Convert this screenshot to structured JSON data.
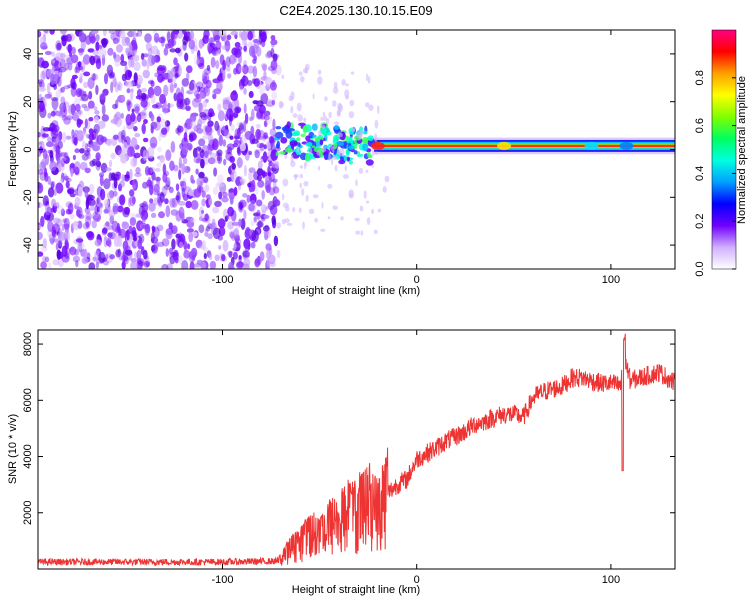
{
  "title": "C2E4.2025.130.10.15.E09",
  "chart_data": [
    {
      "type": "heatmap",
      "xlabel": "Height of straight line (km)",
      "ylabel": "Frequency (Hz)",
      "xlim": [
        -195,
        133
      ],
      "ylim": [
        -50,
        50
      ],
      "x_ticks": [
        -100,
        0,
        100
      ],
      "x_tick_labels": [
        "-100",
        "0",
        "100"
      ],
      "y_ticks": [
        40,
        20,
        0,
        -20,
        -40
      ],
      "y_tick_labels": [
        "40",
        "20",
        "0",
        "-20",
        "-40"
      ],
      "noise_region_x": [
        -195,
        -71
      ],
      "signal_band_center_hz": 1.5,
      "colorbar": {
        "label": "Normalized spectral amplitude",
        "range": [
          0,
          1
        ],
        "ticks": [
          0.0,
          0.2,
          0.4,
          0.6,
          0.8
        ],
        "tick_labels": [
          "0.0",
          "0.2",
          "0.4",
          "0.6",
          "0.8"
        ],
        "colormap": [
          "#ffffff",
          "#d0b0ff",
          "#7000ff",
          "#0000ff",
          "#00a0ff",
          "#00ffe0",
          "#00ff60",
          "#80ff00",
          "#ffff00",
          "#ffa000",
          "#ff0000",
          "#ff0080"
        ]
      }
    },
    {
      "type": "line",
      "xlabel": "Height of straight line (km)",
      "ylabel": "SNR (10 * v/v)",
      "xlim": [
        -195,
        133
      ],
      "ylim": [
        0,
        8500
      ],
      "x_ticks": [
        -100,
        0,
        100
      ],
      "x_tick_labels": [
        "-100",
        "0",
        "100"
      ],
      "y_ticks": [
        2000,
        4000,
        6000,
        8000
      ],
      "y_tick_labels": [
        "2000",
        "4000",
        "6000",
        "8000"
      ],
      "color": "#ee3333",
      "x": [
        -195,
        -150,
        -100,
        -71,
        -65,
        -60,
        -55,
        -50,
        -45,
        -40,
        -35,
        -30,
        -25,
        -20,
        -15,
        -10,
        -5,
        0,
        5,
        10,
        15,
        20,
        25,
        30,
        35,
        40,
        45,
        50,
        55,
        60,
        65,
        70,
        75,
        80,
        85,
        90,
        95,
        100,
        105,
        107,
        110,
        115,
        120,
        125,
        133
      ],
      "values": [
        250,
        250,
        250,
        280,
        700,
        900,
        1200,
        1100,
        1500,
        1600,
        1900,
        2000,
        2300,
        1900,
        2700,
        3000,
        3200,
        3900,
        4100,
        4300,
        4550,
        4700,
        4900,
        5150,
        5250,
        5400,
        5500,
        5500,
        5400,
        6100,
        6300,
        6400,
        6500,
        6800,
        6800,
        6700,
        6600,
        6600,
        6500,
        7500,
        6700,
        6800,
        6900,
        7000,
        6600
      ]
    }
  ]
}
